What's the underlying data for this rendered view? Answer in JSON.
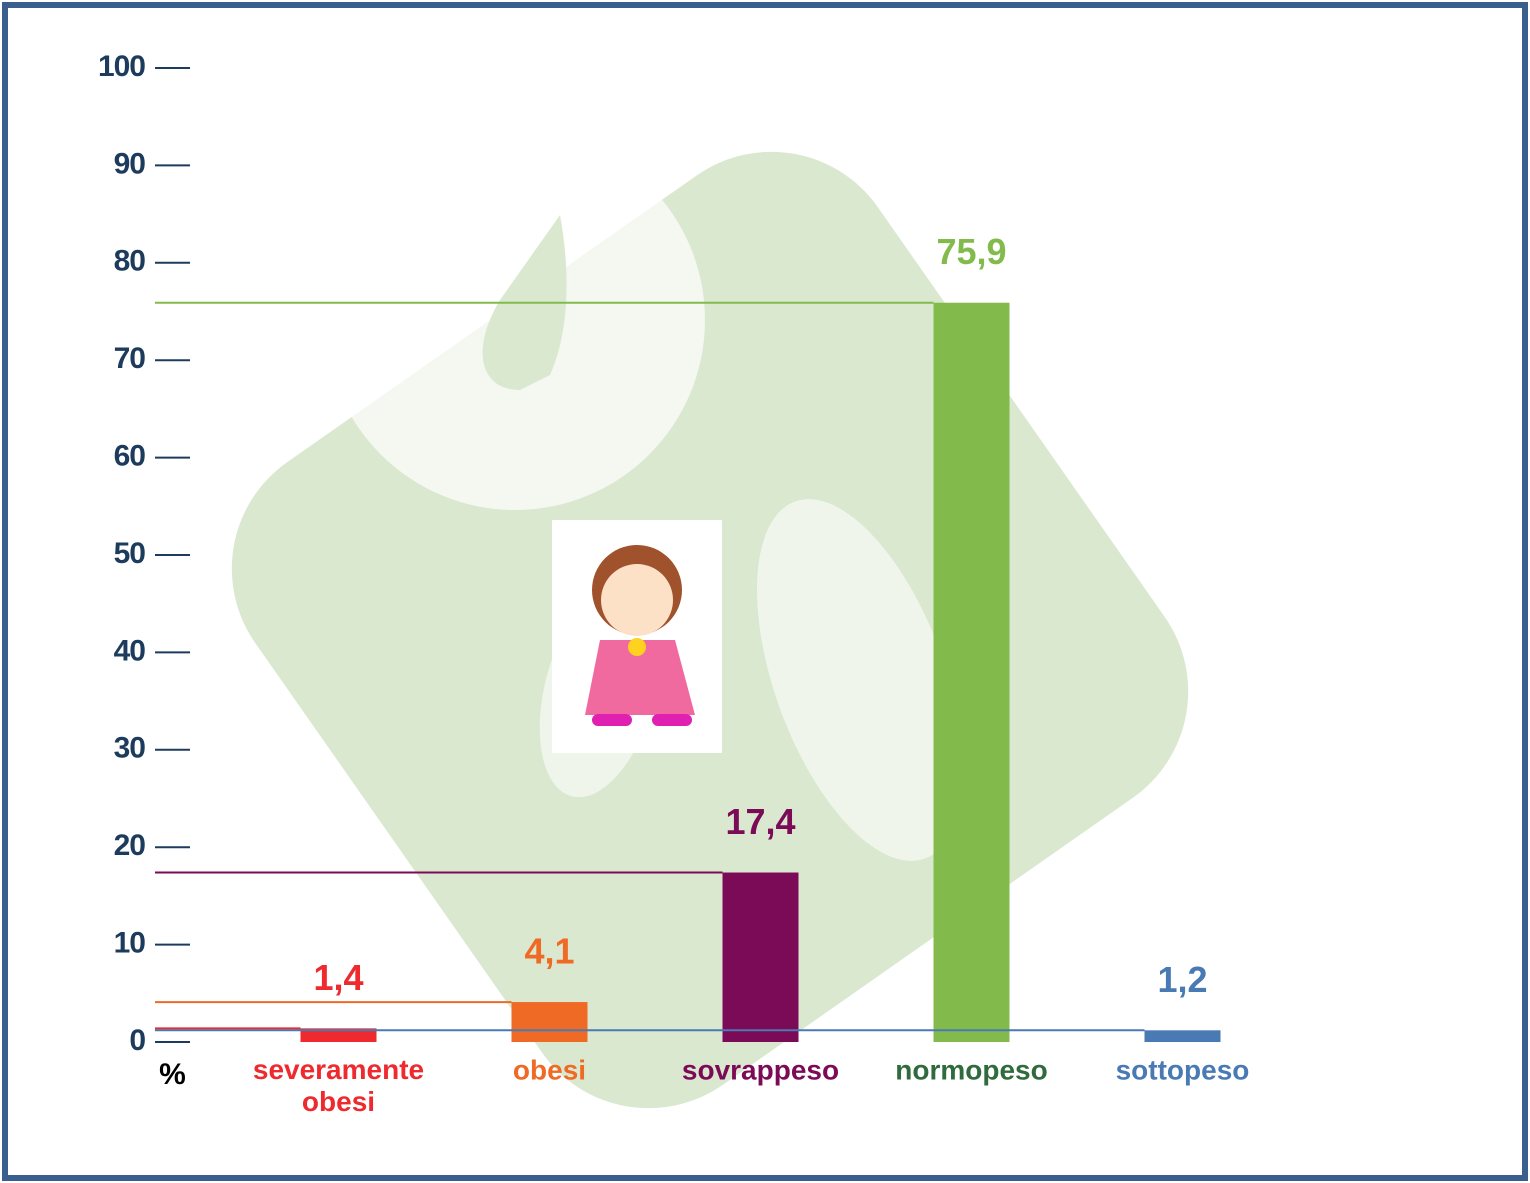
{
  "chart_data": {
    "type": "bar",
    "y_label": "%",
    "categories": [
      "severamente obesi",
      "obesi",
      "sovrappeso",
      "normopeso",
      "sottopeso"
    ],
    "values": [
      1.4,
      4.1,
      17.4,
      75.9,
      1.2
    ],
    "value_labels": [
      "1,4",
      "4,1",
      "17,4",
      "75,9",
      "1,2"
    ],
    "colors": [
      "#ee2a2e",
      "#ef6a24",
      "#7b0a57",
      "#82bb4c",
      "#4a7ab4"
    ],
    "label_colors": [
      "#ee2a2e",
      "#ef6a24",
      "#7b0a57",
      "#2f6b3c",
      "#4a7ab4"
    ],
    "ylim": [
      0,
      100
    ],
    "yticks": [
      0,
      10,
      20,
      30,
      40,
      50,
      60,
      70,
      80,
      90,
      100
    ],
    "tick_color": "#1d3b5c"
  }
}
